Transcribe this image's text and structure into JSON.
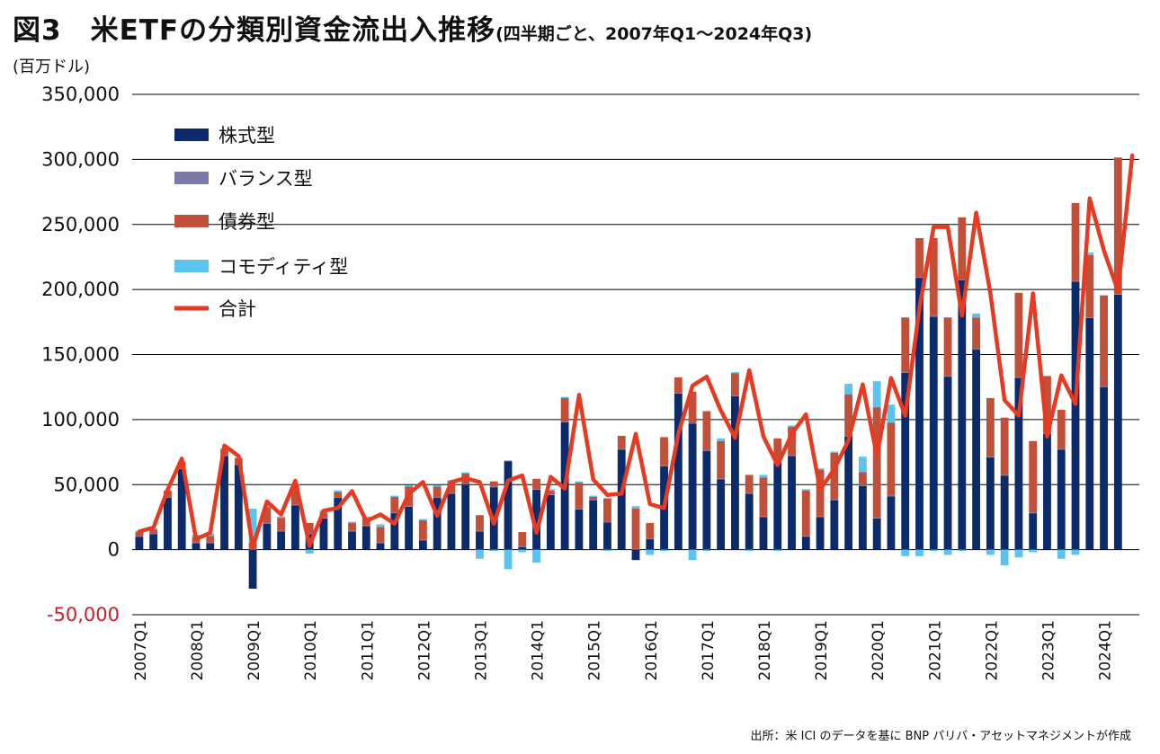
{
  "title": "図3　米ETFの分類別資金流出入推移",
  "subtitle": "(四半期ごと、2007年Q1～2024年Q3)",
  "source": "出所：米 ICI のデータを基に BNP パリバ・アセットマネジメントが作成",
  "colors": {
    "equity": "#0d2b6b",
    "balanced": "#7b79a8",
    "bond": "#c0503a",
    "commodity": "#5bc4ee",
    "total": "#e63a23",
    "negative_tick": "#cc1f2a"
  },
  "chart_data": {
    "type": "bar",
    "stacked": true,
    "ylabel": "(百万ドル)",
    "ylim": [
      -50000,
      350000
    ],
    "yticks": [
      350000,
      300000,
      250000,
      200000,
      150000,
      100000,
      50000,
      0,
      -50000
    ],
    "ytick_labels": [
      "350,000",
      "300,000",
      "250,000",
      "200,000",
      "150,000",
      "100,000",
      "50,000",
      "0",
      "-50,000"
    ],
    "xtick_labels": [
      "2007Q1",
      "2008Q1",
      "2009Q1",
      "2010Q1",
      "2011Q1",
      "2012Q1",
      "2013Q1",
      "2014Q1",
      "2015Q1",
      "2016Q1",
      "2017Q1",
      "2018Q1",
      "2019Q1",
      "2020Q1",
      "2021Q1",
      "2022Q1",
      "2023Q1",
      "2024Q1"
    ],
    "grid": true,
    "legend_position": "top-left",
    "categories": [
      "2007Q1",
      "2007Q2",
      "2007Q3",
      "2007Q4",
      "2008Q1",
      "2008Q2",
      "2008Q3",
      "2008Q4",
      "2009Q1",
      "2009Q2",
      "2009Q3",
      "2009Q4",
      "2010Q1",
      "2010Q2",
      "2010Q3",
      "2010Q4",
      "2011Q1",
      "2011Q2",
      "2011Q3",
      "2011Q4",
      "2012Q1",
      "2012Q2",
      "2012Q3",
      "2012Q4",
      "2013Q1",
      "2013Q2",
      "2013Q3",
      "2013Q4",
      "2014Q1",
      "2014Q2",
      "2014Q3",
      "2014Q4",
      "2015Q1",
      "2015Q2",
      "2015Q3",
      "2015Q4",
      "2016Q1",
      "2016Q2",
      "2016Q3",
      "2016Q4",
      "2017Q1",
      "2017Q2",
      "2017Q3",
      "2017Q4",
      "2018Q1",
      "2018Q2",
      "2018Q3",
      "2018Q4",
      "2019Q1",
      "2019Q2",
      "2019Q3",
      "2019Q4",
      "2020Q1",
      "2020Q2",
      "2020Q3",
      "2020Q4",
      "2021Q1",
      "2021Q2",
      "2021Q3",
      "2021Q4",
      "2022Q1",
      "2022Q2",
      "2022Q3",
      "2022Q4",
      "2023Q1",
      "2023Q2",
      "2023Q3",
      "2023Q4",
      "2024Q1",
      "2024Q2",
      "2024Q3"
    ],
    "series": [
      {
        "name": "株式型",
        "kind": "bar",
        "values": [
          10000,
          12000,
          40000,
          62000,
          5000,
          5000,
          72000,
          65000,
          -30000,
          20000,
          14000,
          34000,
          12000,
          24000,
          40000,
          14000,
          18000,
          5000,
          28000,
          33000,
          7000,
          40000,
          43000,
          50000,
          14000,
          48000,
          68000,
          2000,
          46000,
          42000,
          98000,
          31000,
          38000,
          21000,
          77000,
          -8000,
          8000,
          64000,
          120000,
          97000,
          76000,
          54000,
          118000,
          43000,
          25000,
          67000,
          72000,
          10000,
          25000,
          38000,
          87000,
          49000,
          24000,
          41000,
          136000,
          209000,
          179000,
          133000,
          207000,
          154000,
          71000,
          57000,
          132000,
          28000,
          89000,
          77000,
          206000,
          178000,
          125000,
          196000,
          0
        ]
      },
      {
        "name": "バランス型",
        "kind": "bar",
        "values": [
          500,
          500,
          500,
          500,
          500,
          500,
          500,
          500,
          500,
          500,
          500,
          500,
          500,
          500,
          500,
          500,
          500,
          500,
          500,
          500,
          500,
          500,
          500,
          500,
          500,
          500,
          500,
          500,
          500,
          500,
          500,
          500,
          500,
          500,
          500,
          500,
          500,
          500,
          500,
          500,
          500,
          500,
          500,
          500,
          500,
          500,
          500,
          500,
          500,
          500,
          500,
          500,
          500,
          500,
          500,
          500,
          500,
          500,
          500,
          500,
          500,
          500,
          500,
          500,
          500,
          500,
          500,
          500,
          500,
          500,
          0
        ]
      },
      {
        "name": "債券型",
        "kind": "bar",
        "values": [
          3000,
          3000,
          5000,
          5000,
          4000,
          5000,
          5000,
          5000,
          5000,
          12000,
          10000,
          15000,
          8000,
          4000,
          4000,
          6000,
          6000,
          12000,
          12000,
          15000,
          15000,
          8000,
          9000,
          8000,
          12000,
          4000,
          0,
          11000,
          8000,
          3000,
          18000,
          20000,
          2000,
          18000,
          10000,
          31000,
          12000,
          22000,
          12000,
          24000,
          30000,
          29000,
          17000,
          14000,
          30000,
          18000,
          22000,
          35000,
          36000,
          36000,
          32000,
          10000,
          85000,
          56000,
          42000,
          30000,
          60000,
          45000,
          48000,
          24000,
          45000,
          44000,
          65000,
          55000,
          44000,
          30000,
          60000,
          48000,
          70000,
          105000,
          0
        ]
      },
      {
        "name": "コモディティ型",
        "kind": "bar",
        "values": [
          1000,
          1000,
          0,
          0,
          2000,
          2000,
          0,
          0,
          26000,
          1000,
          1000,
          1000,
          -3000,
          2000,
          1000,
          1000,
          1000,
          2000,
          1000,
          1000,
          1000,
          1000,
          1000,
          1000,
          -7000,
          -1000,
          -15000,
          -2000,
          -10000,
          1000,
          1000,
          1000,
          1000,
          -1000,
          0,
          2000,
          -4000,
          -1000,
          0,
          -8000,
          -1000,
          2000,
          1000,
          -1000,
          2000,
          -1000,
          1000,
          1000,
          1000,
          1000,
          8000,
          12000,
          20000,
          14000,
          -5000,
          -5000,
          -1000,
          -4000,
          -1000,
          3000,
          -4000,
          -12000,
          -6000,
          -2000,
          0,
          -7000,
          -4000,
          2000,
          0,
          0,
          0
        ]
      },
      {
        "name": "合計",
        "kind": "line",
        "values": [
          14000,
          17000,
          46000,
          70000,
          8000,
          13000,
          80000,
          72000,
          2000,
          37000,
          27000,
          53000,
          3000,
          30000,
          32000,
          45000,
          22000,
          27000,
          20000,
          43000,
          52000,
          26000,
          52000,
          55000,
          52000,
          20000,
          53000,
          57000,
          13000,
          56000,
          47000,
          119000,
          54000,
          42000,
          43000,
          89000,
          35000,
          32000,
          89000,
          126000,
          133000,
          107000,
          86000,
          138000,
          87000,
          65000,
          89000,
          104000,
          46000,
          62000,
          84000,
          127000,
          72000,
          132000,
          103000,
          186000,
          248000,
          248000,
          180000,
          259000,
          197000,
          115000,
          103000,
          197000,
          87000,
          134000,
          112000,
          270000,
          230000,
          199000,
          303000
        ]
      }
    ]
  }
}
